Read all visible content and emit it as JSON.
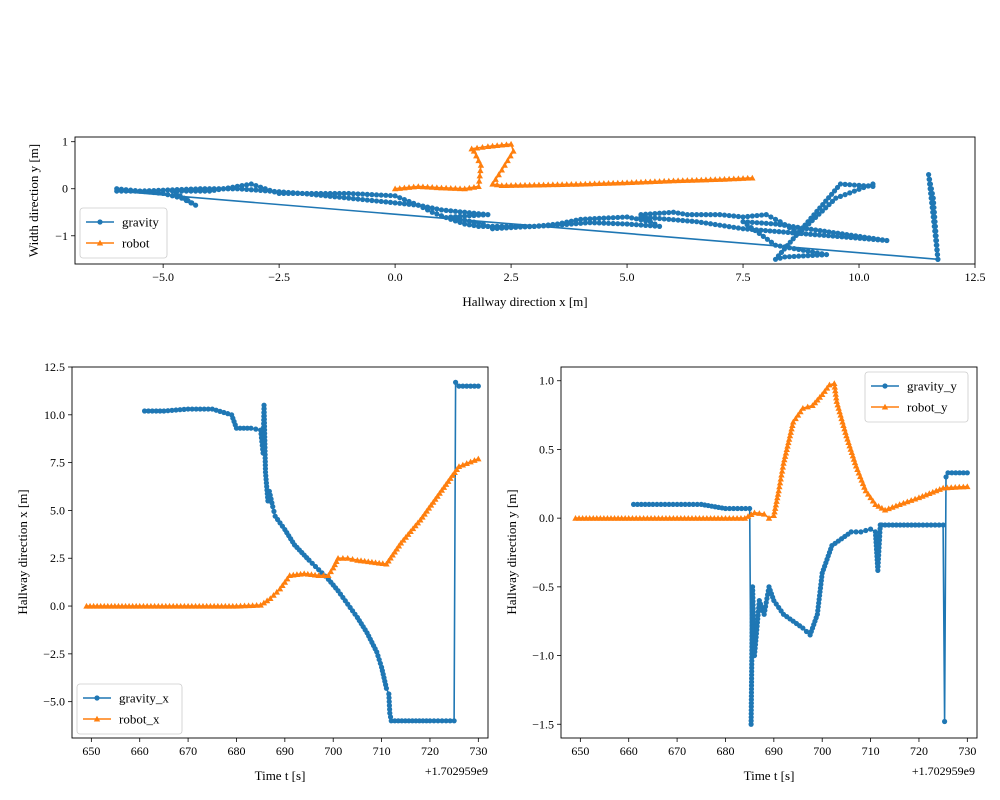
{
  "chart_data": [
    {
      "type": "line",
      "xlabel": "Hallway direction x [m]",
      "ylabel": "Width direction y [m]",
      "xlim": [
        -6.9,
        12.5
      ],
      "ylim": [
        -1.6,
        1.1
      ],
      "xticks": [
        -5,
        -2.5,
        0,
        2.5,
        5,
        7.5,
        10,
        12.5
      ],
      "xtick_labels": [
        "−5.0",
        "−2.5",
        "0.0",
        "2.5",
        "5.0",
        "7.5",
        "10.0",
        "12.5"
      ],
      "yticks": [
        1,
        0,
        -1
      ],
      "ytick_labels": [
        "1",
        "0",
        "−1"
      ],
      "legend": "lower-left",
      "series": [
        {
          "name": "gravity",
          "color": "#1f77b4",
          "marker": "circle",
          "x": [
            -6.0,
            -5.0,
            -4.6,
            -4.3,
            -4.8,
            -4.0,
            -3.4,
            -3.1,
            -2.5,
            -2.0,
            -1.0,
            0.0,
            0.5,
            0.8,
            1.2,
            1.5,
            1.8,
            2.5,
            3.0,
            3.5,
            4.0,
            5.0,
            5.5,
            5.3,
            6.0,
            6.3,
            7.0,
            7.5,
            8.0,
            8.3,
            8.7,
            9.5,
            10.3,
            10.3,
            9.6,
            8.2,
            8.4,
            9.3,
            8.2,
            7.5,
            8.2,
            10.6,
            7.5,
            6.5,
            5.3,
            5.7,
            5.0,
            4.2,
            3.4,
            2.6,
            2.1,
            1.9,
            1.4,
            1.2,
            2.0,
            1.0,
            0.5,
            -1.0,
            -2.0,
            -3.4,
            -4.2,
            -5.5,
            -6.0,
            11.7,
            11.5,
            11.6,
            11.7
          ],
          "y": [
            0.0,
            -0.1,
            -0.2,
            -0.35,
            -0.05,
            -0.05,
            0.05,
            0.1,
            -0.1,
            -0.1,
            -0.1,
            -0.15,
            -0.35,
            -0.5,
            -0.65,
            -0.75,
            -0.8,
            -0.8,
            -0.8,
            -0.75,
            -0.65,
            -0.6,
            -0.7,
            -0.55,
            -0.5,
            -0.55,
            -0.55,
            -0.6,
            -0.55,
            -0.7,
            -0.95,
            -0.2,
            0.1,
            0.05,
            0.1,
            -1.5,
            -1.45,
            -1.4,
            -1.2,
            -0.7,
            -0.75,
            -1.1,
            -0.85,
            -0.7,
            -0.6,
            -0.8,
            -0.75,
            -0.72,
            -0.78,
            -0.82,
            -0.85,
            -0.75,
            -0.65,
            -0.6,
            -0.55,
            -0.45,
            -0.35,
            -0.2,
            -0.1,
            0.0,
            0.0,
            -0.05,
            -0.05,
            -1.5,
            0.3,
            -0.2,
            -1.5
          ]
        },
        {
          "name": "robot",
          "color": "#ff7f0e",
          "marker": "triangle",
          "x": [
            0.0,
            0.5,
            1.0,
            1.5,
            1.8,
            1.85,
            1.7,
            1.65,
            2.0,
            2.5,
            2.55,
            2.3,
            2.1,
            2.3,
            3.0,
            4.0,
            5.0,
            6.0,
            7.0,
            7.7
          ],
          "y": [
            0.0,
            0.05,
            0.02,
            0.0,
            0.05,
            0.5,
            0.8,
            0.85,
            0.9,
            0.95,
            0.8,
            0.4,
            0.1,
            0.07,
            0.08,
            0.1,
            0.13,
            0.17,
            0.2,
            0.23
          ]
        }
      ]
    },
    {
      "type": "line",
      "xlabel": "Time t [s]",
      "ylabel": "Hallway direction x [m]",
      "xlim": [
        646,
        732
      ],
      "ylim": [
        -6.9,
        12.5
      ],
      "xticks": [
        650,
        660,
        670,
        680,
        690,
        700,
        710,
        720,
        730
      ],
      "yticks": [
        12.5,
        10,
        7.5,
        5,
        2.5,
        0,
        -2.5,
        -5
      ],
      "ytick_labels": [
        "12.5",
        "10.0",
        "7.5",
        "5.0",
        "2.5",
        "0.0",
        "−2.5",
        "−5.0"
      ],
      "offset_text": "+1.702959e9",
      "legend": "lower-left",
      "series": [
        {
          "name": "gravity_x",
          "color": "#1f77b4",
          "marker": "circle",
          "x": [
            661,
            665,
            670,
            675,
            679,
            680,
            683,
            685,
            685.5,
            685.7,
            686,
            686.5,
            686.8,
            687.5,
            688,
            690,
            692,
            695,
            697,
            699,
            701,
            703,
            705,
            707,
            709,
            710,
            711,
            711.5,
            711.7,
            712,
            720,
            725,
            725.3,
            726,
            730
          ],
          "y": [
            10.2,
            10.2,
            10.3,
            10.3,
            10.0,
            9.3,
            9.3,
            9.2,
            8.0,
            10.5,
            7.0,
            5.5,
            6.0,
            5.2,
            4.7,
            4.0,
            3.2,
            2.4,
            1.9,
            1.4,
            0.8,
            0.1,
            -0.6,
            -1.4,
            -2.4,
            -3.2,
            -4.3,
            -4.6,
            -5.6,
            -6.0,
            -6.0,
            -6.0,
            11.7,
            11.5,
            11.5
          ]
        },
        {
          "name": "robot_x",
          "color": "#ff7f0e",
          "marker": "triangle",
          "x": [
            649,
            660,
            670,
            680,
            685,
            687,
            689,
            691,
            694,
            697,
            699,
            700,
            701,
            703,
            705,
            708,
            711,
            714,
            718,
            722,
            726,
            730
          ],
          "y": [
            0.0,
            0.0,
            0.0,
            0.0,
            0.05,
            0.4,
            0.9,
            1.6,
            1.7,
            1.6,
            1.6,
            2.0,
            2.5,
            2.5,
            2.4,
            2.3,
            2.2,
            3.3,
            4.5,
            5.9,
            7.3,
            7.7
          ]
        }
      ]
    },
    {
      "type": "line",
      "xlabel": "Time t [s]",
      "ylabel": "Hallway direction y [m]",
      "xlim": [
        646,
        732
      ],
      "ylim": [
        -1.6,
        1.1
      ],
      "xticks": [
        650,
        660,
        670,
        680,
        690,
        700,
        710,
        720,
        730
      ],
      "yticks": [
        1,
        0.5,
        0,
        -0.5,
        -1,
        -1.5
      ],
      "ytick_labels": [
        "1.0",
        "0.5",
        "0.0",
        "−0.5",
        "−1.0",
        "−1.5"
      ],
      "offset_text": "+1.702959e9",
      "legend": "upper-right",
      "series": [
        {
          "name": "gravity_y",
          "color": "#1f77b4",
          "marker": "circle",
          "x": [
            661,
            665,
            670,
            675,
            680,
            685,
            685.3,
            685.6,
            686,
            687,
            688,
            689,
            690,
            692,
            694,
            696,
            697.5,
            699,
            700,
            701,
            702,
            704,
            706,
            708,
            710,
            711,
            711.5,
            712,
            712.3,
            713,
            720,
            725,
            725.3,
            725.6,
            726,
            730
          ],
          "y": [
            0.1,
            0.1,
            0.1,
            0.1,
            0.07,
            0.07,
            -1.5,
            -0.5,
            -1.0,
            -0.6,
            -0.7,
            -0.5,
            -0.6,
            -0.7,
            -0.75,
            -0.8,
            -0.85,
            -0.7,
            -0.4,
            -0.3,
            -0.2,
            -0.15,
            -0.1,
            -0.1,
            -0.08,
            -0.1,
            -0.38,
            -0.05,
            -0.05,
            -0.05,
            -0.05,
            -0.05,
            -1.48,
            0.3,
            0.33,
            0.33
          ]
        },
        {
          "name": "robot_y",
          "color": "#ff7f0e",
          "marker": "triangle",
          "x": [
            649,
            660,
            670,
            680,
            684,
            686,
            688,
            689,
            690,
            691,
            692,
            694,
            696,
            698,
            700,
            701.5,
            702.5,
            703,
            705,
            707,
            709,
            711,
            713,
            716,
            720,
            725,
            730
          ],
          "y": [
            0.0,
            0.0,
            0.0,
            0.0,
            0.0,
            0.04,
            0.03,
            0.0,
            0.02,
            0.2,
            0.4,
            0.7,
            0.8,
            0.82,
            0.9,
            0.97,
            0.98,
            0.85,
            0.6,
            0.38,
            0.2,
            0.1,
            0.06,
            0.1,
            0.15,
            0.22,
            0.23
          ]
        }
      ]
    }
  ]
}
